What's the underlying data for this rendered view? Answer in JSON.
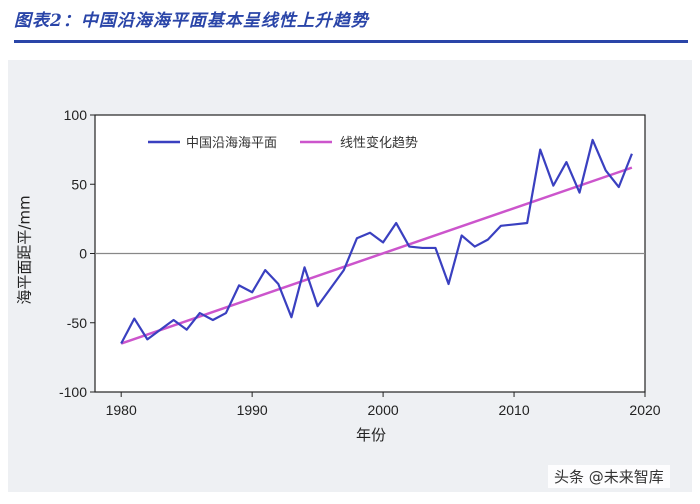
{
  "figure_title": "图表2：中国沿海海平面基本呈线性上升趋势",
  "watermark_text": "头条 @未来智库",
  "colors": {
    "title": "#2a45a8",
    "observed": "#3a40c0",
    "trend": "#cc55cc",
    "zero_line": "#888888"
  },
  "chart_data": {
    "type": "line",
    "title": "",
    "xlabel": "年份",
    "ylabel": "海平面距平/mm",
    "xlim": [
      1978,
      2020
    ],
    "ylim": [
      -100,
      100
    ],
    "xticks": [
      1980,
      1990,
      2000,
      2010,
      2020
    ],
    "yticks": [
      -100,
      -50,
      0,
      50,
      100
    ],
    "legend_position": "top",
    "series": [
      {
        "name": "中国沿海海平面",
        "x": [
          1980,
          1981,
          1982,
          1983,
          1984,
          1985,
          1986,
          1987,
          1988,
          1989,
          1990,
          1991,
          1992,
          1993,
          1994,
          1995,
          1996,
          1997,
          1998,
          1999,
          2000,
          2001,
          2002,
          2003,
          2004,
          2005,
          2006,
          2007,
          2008,
          2009,
          2010,
          2011,
          2012,
          2013,
          2014,
          2015,
          2016,
          2017,
          2018,
          2019
        ],
        "values": [
          -65,
          -47,
          -62,
          -55,
          -48,
          -55,
          -43,
          -48,
          -43,
          -23,
          -28,
          -12,
          -22,
          -46,
          -10,
          -38,
          -25,
          -12,
          11,
          15,
          8,
          22,
          5,
          4,
          4,
          -22,
          13,
          5,
          10,
          20,
          21,
          22,
          75,
          49,
          66,
          44,
          82,
          60,
          48,
          72
        ]
      },
      {
        "name": "线性变化趋势",
        "x": [
          1980,
          2019
        ],
        "values": [
          -65,
          62
        ]
      }
    ]
  }
}
